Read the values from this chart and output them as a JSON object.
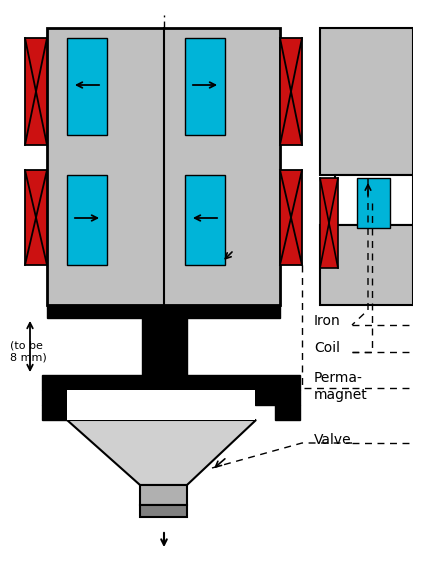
{
  "bg_color": "#ffffff",
  "iron_color": "#c0c0c0",
  "coil_color": "#00b4d8",
  "magnet_color": "#cc1111",
  "black": "#000000",
  "labels": {
    "iron": "Iron",
    "coil": "Coil",
    "permanent_magnet1": "Perma-",
    "permanent_magnet2": "magnet",
    "valve": "Valve"
  },
  "dim_label1": "(to be",
  "dim_label2": "8 mm)"
}
